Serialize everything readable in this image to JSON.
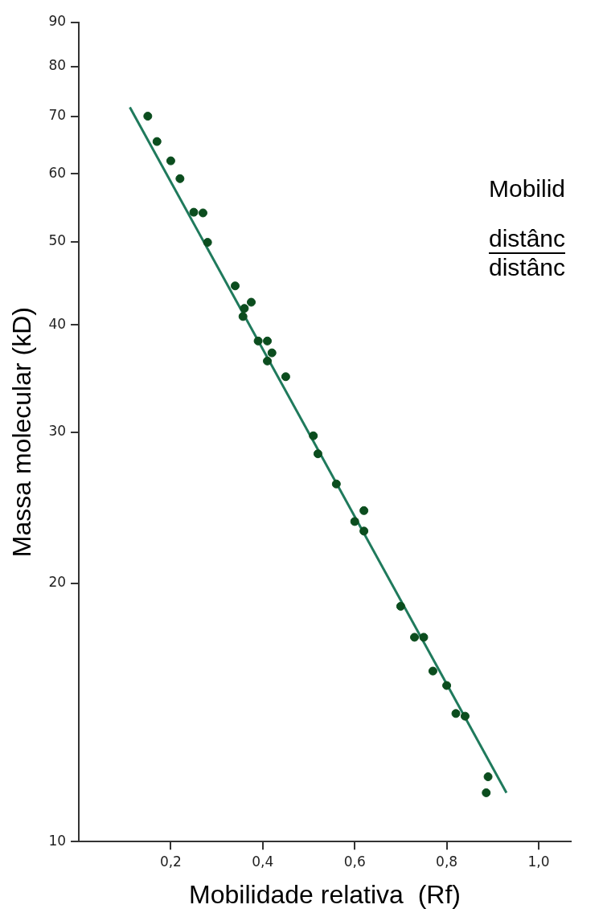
{
  "chart_data": {
    "type": "scatter",
    "xlabel": "Mobilidade relativa  (Rf)",
    "ylabel": "Massa molecular (kD)",
    "annotations": [
      "Mobilid",
      "distânc",
      "distânc"
    ],
    "series": [
      {
        "color": "#0b4d1e",
        "marker": "circle",
        "x": [
          0.15,
          0.17,
          0.2,
          0.22,
          0.25,
          0.27,
          0.28,
          0.34,
          0.36,
          0.375,
          0.357,
          0.39,
          0.41,
          0.42,
          0.41,
          0.45,
          0.51,
          0.52,
          0.56,
          0.6,
          0.62,
          0.62,
          0.7,
          0.73,
          0.75,
          0.77,
          0.8,
          0.82,
          0.84,
          0.89,
          0.886
        ],
        "values": [
          70,
          65.4,
          62.1,
          59.2,
          54.1,
          54,
          49.9,
          44.4,
          41.8,
          42.5,
          40.9,
          38.3,
          38.3,
          37.1,
          36.3,
          34.8,
          29.7,
          28.3,
          26.1,
          23.6,
          24.3,
          23,
          18.8,
          17.3,
          17.3,
          15.8,
          15.2,
          14.1,
          14,
          11.9,
          11.4
        ]
      },
      {
        "type": "line",
        "color": "#1f7a5c",
        "marker": "none",
        "x": [
          0.111,
          0.93
        ],
        "values": [
          71.7,
          11.4
        ]
      }
    ],
    "xlim": [
      0,
      1.07
    ],
    "ylim": [
      10,
      90
    ],
    "xticks": [
      {
        "value": 0.2,
        "label": "0,2"
      },
      {
        "value": 0.4,
        "label": "0,4"
      },
      {
        "value": 0.6,
        "label": "0,6"
      },
      {
        "value": 0.8,
        "label": "0,8"
      },
      {
        "value": 1.0,
        "label": "1,0"
      }
    ],
    "yticks": [
      10,
      20,
      30,
      40,
      50,
      60,
      70,
      80,
      90
    ],
    "log": "y",
    "grid": false,
    "legend": false
  }
}
